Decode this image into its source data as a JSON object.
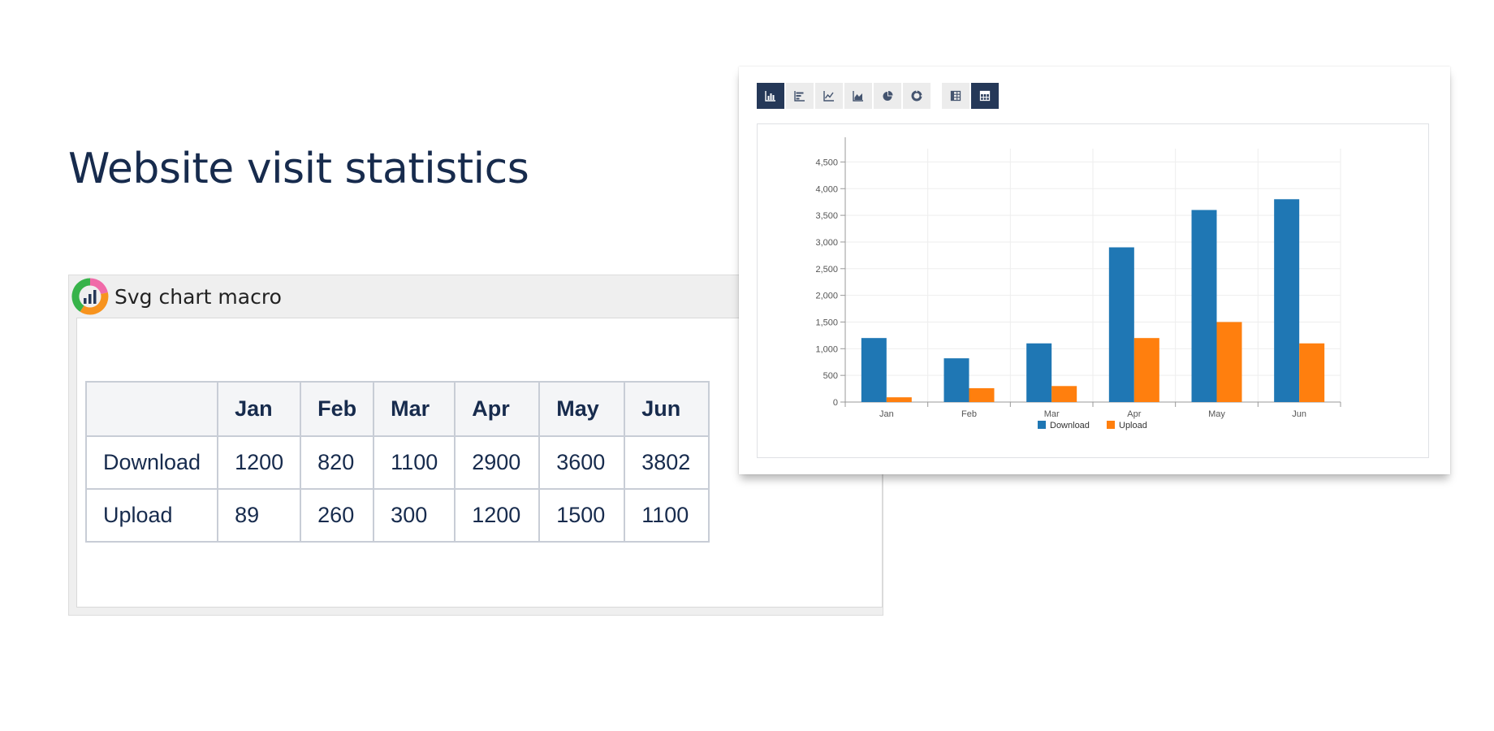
{
  "page": {
    "title": "Website visit statistics"
  },
  "macro": {
    "title": "Svg chart macro",
    "logo_icon": "pie-chart-logo-icon"
  },
  "table": {
    "headers": [
      "",
      "Jan",
      "Feb",
      "Mar",
      "Apr",
      "May",
      "Jun"
    ],
    "rows": [
      {
        "label": "Download",
        "values": [
          "1200",
          "820",
          "1100",
          "2900",
          "3600",
          "3802"
        ]
      },
      {
        "label": "Upload",
        "values": [
          "89",
          "260",
          "300",
          "1200",
          "1500",
          "1100"
        ]
      }
    ]
  },
  "toolbar": {
    "buttons": [
      {
        "icon": "bar-chart-icon",
        "active": true
      },
      {
        "icon": "horizontal-bar-chart-icon",
        "active": false
      },
      {
        "icon": "line-chart-icon",
        "active": false
      },
      {
        "icon": "area-chart-icon",
        "active": false
      },
      {
        "icon": "pie-chart-icon",
        "active": false
      },
      {
        "icon": "donut-chart-icon",
        "active": false
      },
      {
        "icon": "table-icon",
        "active": false
      },
      {
        "icon": "table-header-icon",
        "active": true
      }
    ]
  },
  "chart_data": {
    "type": "bar",
    "categories": [
      "Jan",
      "Feb",
      "Mar",
      "Apr",
      "May",
      "Jun"
    ],
    "series": [
      {
        "name": "Download",
        "values": [
          1200,
          820,
          1100,
          2900,
          3600,
          3802
        ],
        "color": "#1f77b4"
      },
      {
        "name": "Upload",
        "values": [
          89,
          260,
          300,
          1200,
          1500,
          1100
        ],
        "color": "#ff7f0e"
      }
    ],
    "yticks": [
      "0",
      "500",
      "1,000",
      "1,500",
      "2,000",
      "2,500",
      "3,000",
      "3,500",
      "4,000",
      "4,500"
    ],
    "ylim": [
      0,
      4750
    ],
    "grid": true,
    "legend": "bottom-center"
  }
}
